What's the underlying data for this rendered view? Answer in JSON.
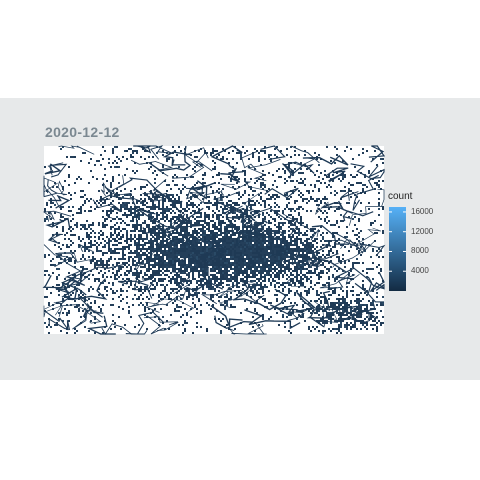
{
  "chart_data": {
    "type": "heatmap",
    "title": "2020-12-12",
    "xlabel": "",
    "ylabel": "",
    "grid": false,
    "colors": {
      "background": "#e7e9ea",
      "low": "#132b43",
      "high": "#56b1f7",
      "empty": "#ffffff",
      "title": "#7b8891"
    },
    "legend": {
      "title": "count",
      "placement": "right",
      "range": [
        0,
        17000
      ],
      "ticks": [
        {
          "value": 4000,
          "label": "4000"
        },
        {
          "value": 8000,
          "label": "8000"
        },
        {
          "value": 12000,
          "label": "12000"
        },
        {
          "value": 16000,
          "label": "16000"
        }
      ]
    }
  }
}
